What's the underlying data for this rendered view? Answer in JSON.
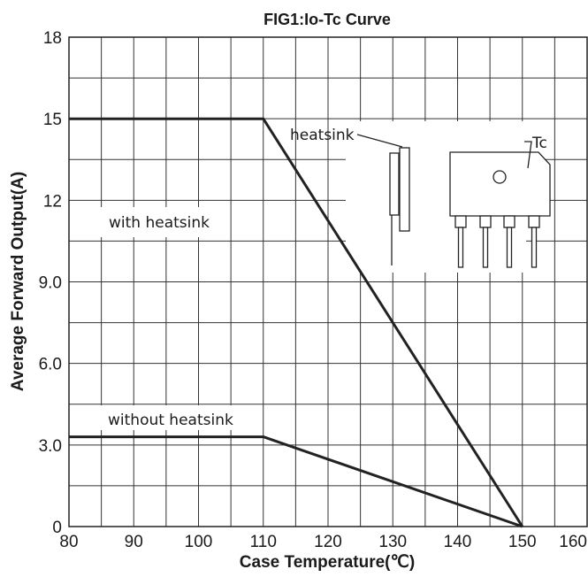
{
  "chart_data": {
    "type": "line",
    "title": "FIG1:Io-Tc Curve",
    "xlabel": "Case Temperature(℃)",
    "ylabel": "Average Forward Output(A)",
    "xlim": [
      80,
      160
    ],
    "ylim": [
      0,
      18
    ],
    "x_ticks": [
      "80",
      "90",
      "100",
      "110",
      "120",
      "130",
      "140",
      "150",
      "160"
    ],
    "y_ticks": [
      "0",
      "3.0",
      "6.0",
      "9.0",
      "12",
      "15",
      "18"
    ],
    "grid": true,
    "series": [
      {
        "name": "with heatsink",
        "x": [
          80,
          110,
          150
        ],
        "y": [
          15,
          15,
          0
        ]
      },
      {
        "name": "without heatsink",
        "x": [
          80,
          110,
          150
        ],
        "y": [
          3.3,
          3.3,
          0
        ]
      }
    ],
    "annotations": {
      "with_heatsink": "with heatsink",
      "without_heatsink": "without heatsink",
      "heatsink": "heatsink",
      "tc": "Tc"
    }
  }
}
